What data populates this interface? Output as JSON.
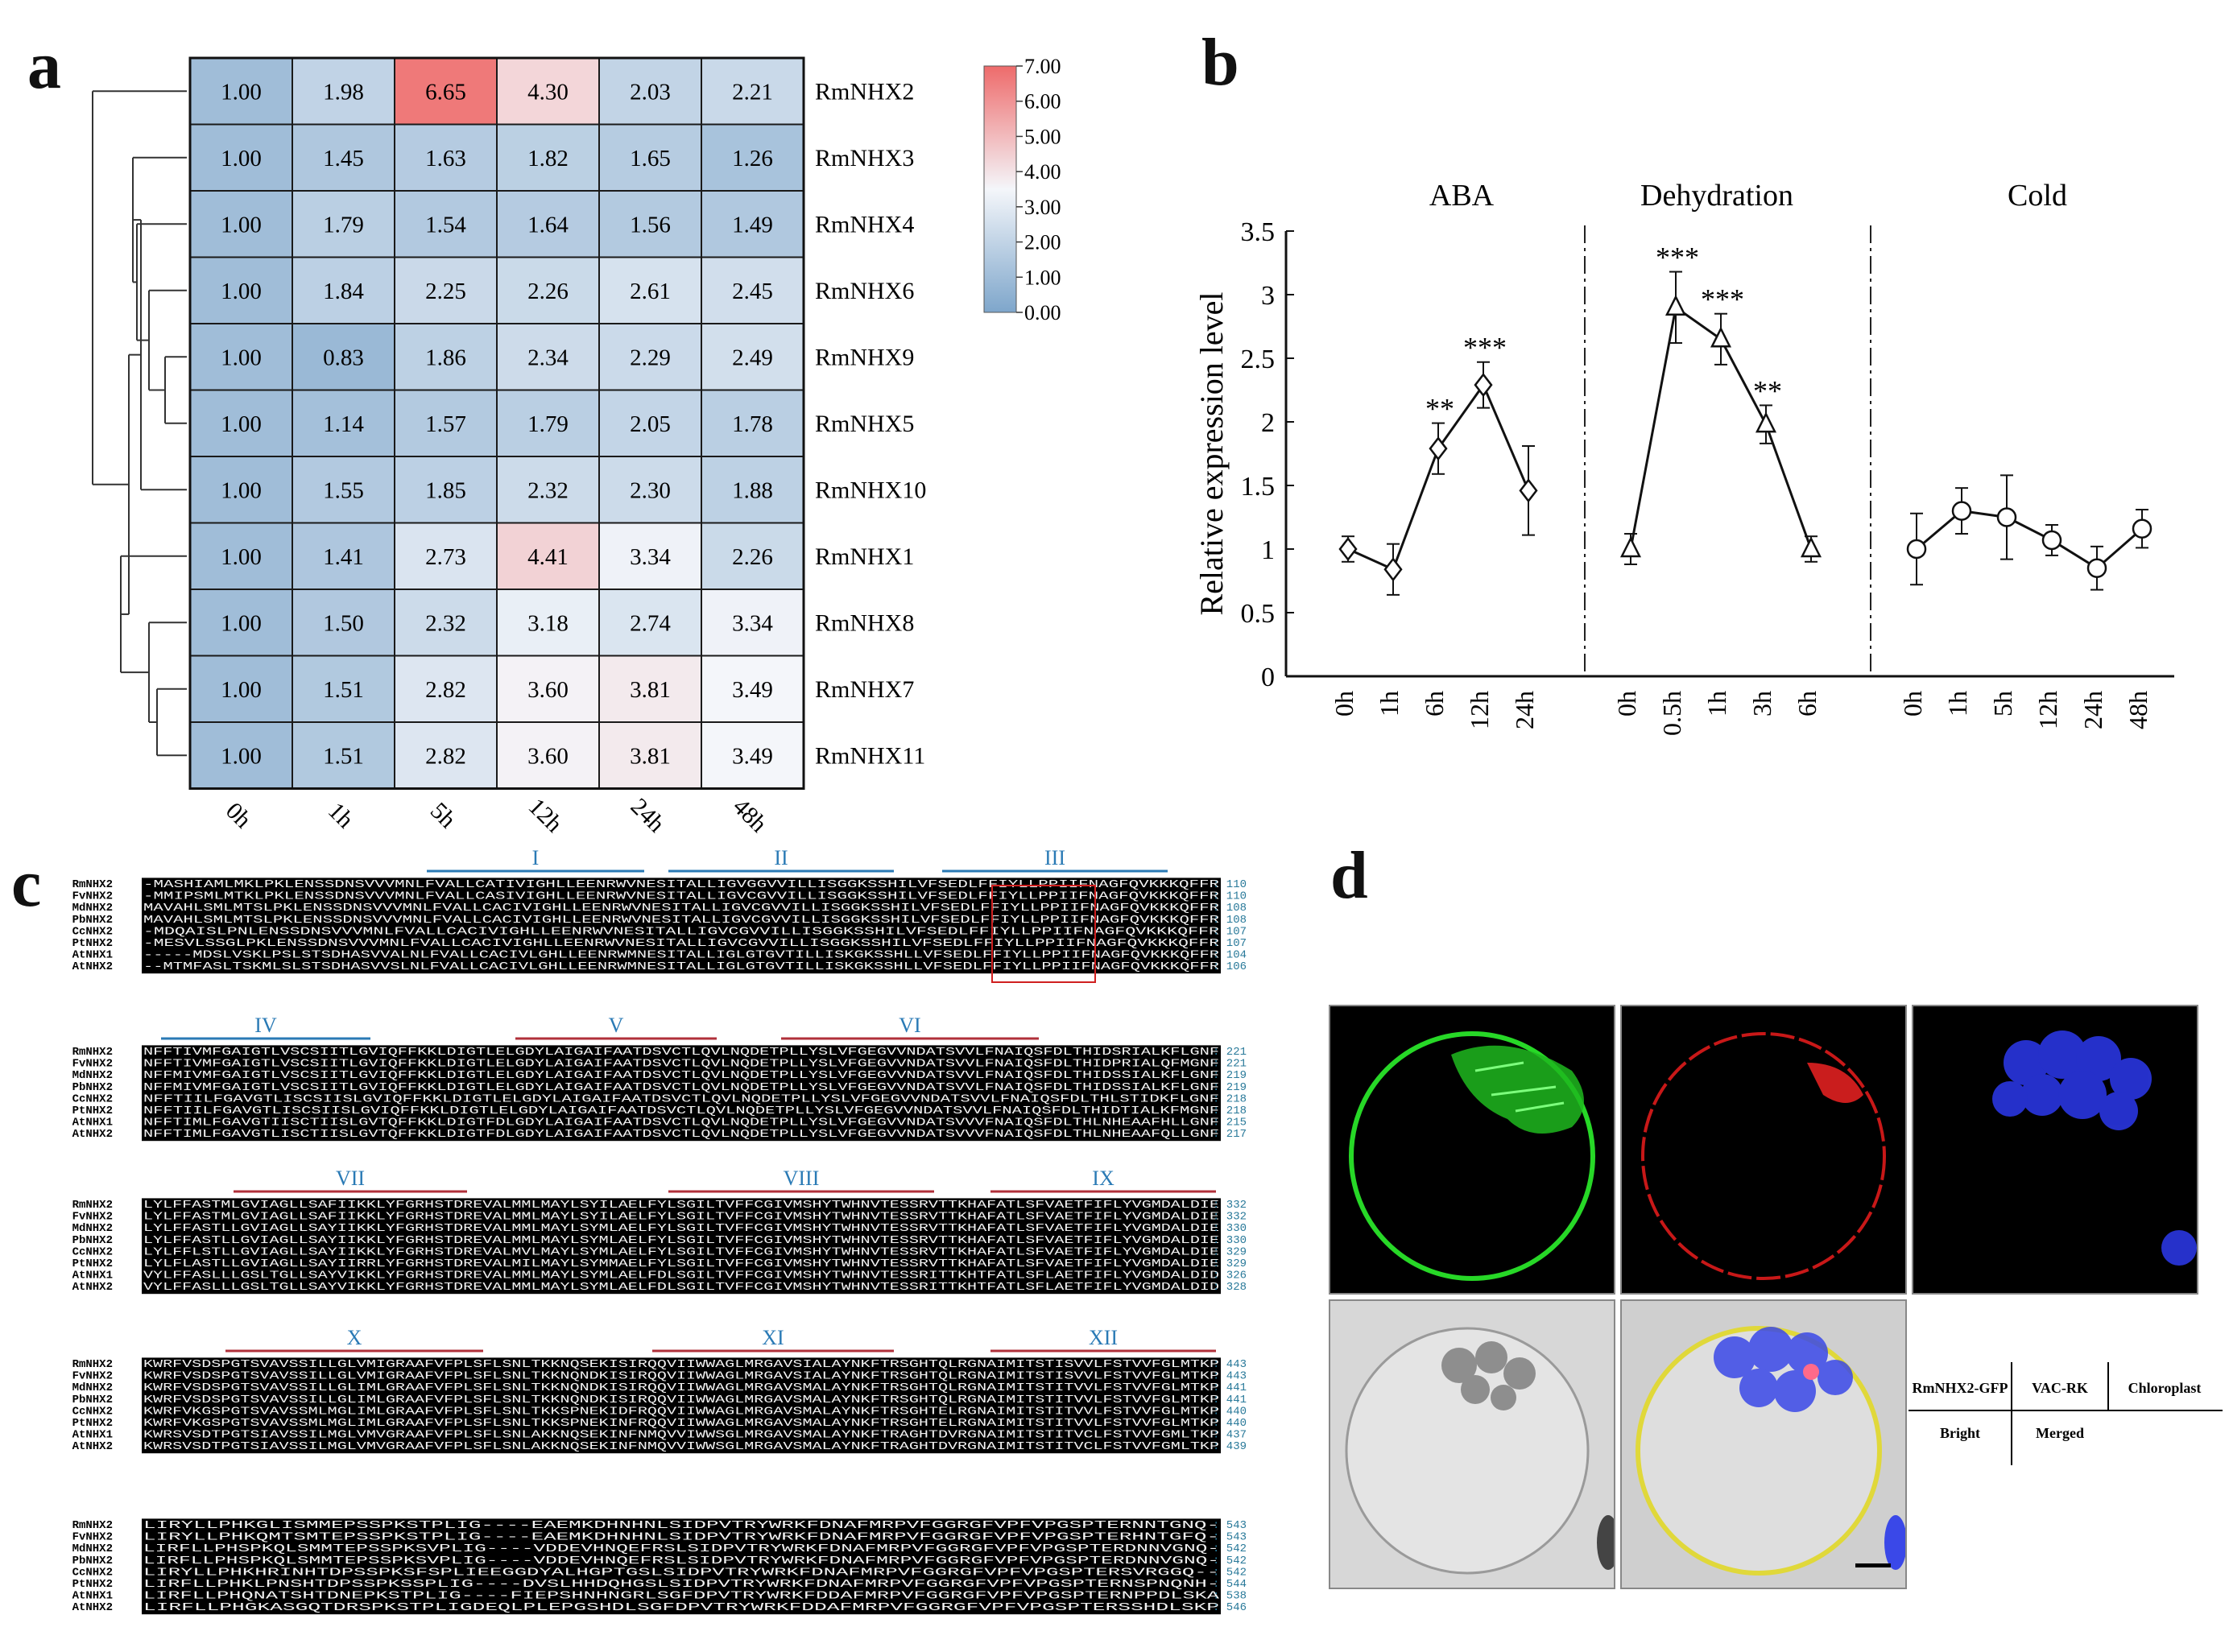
{
  "panels": {
    "a": "a",
    "b": "b",
    "c": "c",
    "d": "d"
  },
  "heatmap": {
    "columns": [
      "0h",
      "1h",
      "5h",
      "12h",
      "24h",
      "48h"
    ],
    "rows": [
      {
        "gene": "RmNHX2",
        "values": [
          1.0,
          1.98,
          6.65,
          4.3,
          2.03,
          2.21
        ]
      },
      {
        "gene": "RmNHX3",
        "values": [
          1.0,
          1.45,
          1.63,
          1.82,
          1.65,
          1.26
        ]
      },
      {
        "gene": "RmNHX4",
        "values": [
          1.0,
          1.79,
          1.54,
          1.64,
          1.56,
          1.49
        ]
      },
      {
        "gene": "RmNHX6",
        "values": [
          1.0,
          1.84,
          2.25,
          2.26,
          2.61,
          2.45
        ]
      },
      {
        "gene": "RmNHX9",
        "values": [
          1.0,
          0.83,
          1.86,
          2.34,
          2.29,
          2.49
        ]
      },
      {
        "gene": "RmNHX5",
        "values": [
          1.0,
          1.14,
          1.57,
          1.79,
          2.05,
          1.78
        ]
      },
      {
        "gene": "RmNHX10",
        "values": [
          1.0,
          1.55,
          1.85,
          2.32,
          2.3,
          1.88
        ]
      },
      {
        "gene": "RmNHX1",
        "values": [
          1.0,
          1.41,
          2.73,
          4.41,
          3.34,
          2.26
        ]
      },
      {
        "gene": "RmNHX8",
        "values": [
          1.0,
          1.5,
          2.32,
          3.18,
          2.74,
          3.34
        ]
      },
      {
        "gene": "RmNHX7",
        "values": [
          1.0,
          1.51,
          2.82,
          3.6,
          3.81,
          3.49
        ]
      },
      {
        "gene": "RmNHX11",
        "values": [
          1.0,
          1.51,
          2.82,
          3.6,
          3.81,
          3.49
        ]
      }
    ],
    "scale_labels": [
      "7.00",
      "6.00",
      "5.00",
      "4.00",
      "3.00",
      "2.00",
      "1.00",
      "0.00"
    ],
    "scale_range": [
      0,
      7
    ],
    "colors": {
      "low": "#7ea6cb",
      "mid": "#f4f6fa",
      "high": "#ee6b6b"
    }
  },
  "chart_data": {
    "type": "line",
    "ylabel": "Relative expression level",
    "ylim": [
      0,
      3.5
    ],
    "yticks": [
      "0",
      "0.5",
      "1",
      "1.5",
      "2",
      "2.5",
      "3",
      "3.5"
    ],
    "groups": [
      {
        "name": "ABA",
        "marker": "diamond",
        "x": [
          "0h",
          "1h",
          "6h",
          "12h",
          "24h"
        ],
        "y": [
          1.0,
          0.84,
          1.79,
          2.29,
          1.46
        ],
        "err": [
          0.1,
          0.2,
          0.2,
          0.18,
          0.35
        ],
        "sig": [
          "",
          "",
          "**",
          "***",
          ""
        ]
      },
      {
        "name": "Dehydration",
        "marker": "triangle",
        "x": [
          "0h",
          "0.5h",
          "1h",
          "3h",
          "6h"
        ],
        "y": [
          1.0,
          2.9,
          2.65,
          1.98,
          1.0
        ],
        "err": [
          0.12,
          0.28,
          0.2,
          0.15,
          0.1
        ],
        "sig": [
          "",
          "***",
          "***",
          "**",
          ""
        ]
      },
      {
        "name": "Cold",
        "marker": "circle",
        "x": [
          "0h",
          "1h",
          "5h",
          "12h",
          "24h",
          "48h"
        ],
        "y": [
          1.0,
          1.3,
          1.25,
          1.07,
          0.85,
          1.16
        ],
        "err": [
          0.28,
          0.18,
          0.33,
          0.12,
          0.17,
          0.15
        ],
        "sig": [
          "",
          "",
          "",
          "",
          "",
          ""
        ]
      }
    ]
  },
  "alignment": {
    "blocks": [
      {
        "domains": [
          "I",
          "II",
          "III"
        ],
        "rows": [
          {
            "name": "RmNHX2",
            "seq": "-MASHIAMLMKLPKLENSSDNSVVVMNLFVALLCATIVIGHLLEENRWVNESITALLIGVGGVVILLISGGKSSHILVFSEDLFFIYLLPPIIFNAGFQVKKKQFFR",
            "num": "110"
          },
          {
            "name": "FvNHX2",
            "seq": "-MMIPSMLMTKLPKLENSSDNSVVVMNLFVALLCASIVIGHLLEENRWVNESITALLIGVCGVVILLISGGKSSHILVFSEDLFFIYLLPPIIFNAGFQVKKKQFFR",
            "num": "110"
          },
          {
            "name": "MdNHX2",
            "seq": "MAVAHLSMLMTSLPKLENSSDNSVVVMNLFVALLCACIVIGHLLEENRWVNESITALLIGVCGVVILLISGGKSSHILVFSEDLFFIYLLPPIIFNAGFQVKKKQFFR",
            "num": "108"
          },
          {
            "name": "PbNHX2",
            "seq": "MAVAHLSMLMTSLPKLENSSDNSVVVMNLFVALLCACIVIGHLLEENRWVNESITALLIGVCGVVILLISGGKSSHILVFSEDLFFIYLLPPIIFNAGFQVKKKQFFR",
            "num": "108"
          },
          {
            "name": "CcNHX2",
            "seq": "-MDQAISLPNLENSSDNSVVVMNLFVALLCACIVIGHLLEENRWVNESITALLIGVCGVVILLISGGKSSHILVFSEDLFFIYLLPPIIFNAGFQVKKKQFFR",
            "num": "107"
          },
          {
            "name": "PtNHX2",
            "seq": "-MESVLSSGLPKLENSSDNSVVVMNLFVALLCACIVIGHLLEENRWVNESITALLIGVCGVVILLISGGKSSHILVFSEDLFFIYLLPPIIFNAGFQVKKKQFFR",
            "num": "107"
          },
          {
            "name": "AtNHX1",
            "seq": "-----MDSLVSKLPSLSTSDHASVVALNLFVALLCACIVLGHLLEENRWMNESITALLIGLGTGVTILLISKGKSSHLLVFSEDLFFIYLLPPIIFNAGFQVKKKQFFR",
            "num": "104"
          },
          {
            "name": "AtNHX2",
            "seq": "--MTMFASLTSKMLSLSTSDHASVVSLNLFVALLCACIVLGHLLEENRWMNESITALLIGLGTGVTILLISKGKSSHLLVFSEDLFFIYLLPPIIFNAGFQVKKKQFFR",
            "num": "106"
          }
        ]
      },
      {
        "domains": [
          "IV",
          "V",
          "VI"
        ],
        "rows": [
          {
            "name": "RmNHX2",
            "seq": "NFFTIVMFGAIGTLVSCSIITLGVIQFFKKLDIGTLELGDYLAIGAIFAATDSVCTLQVLNQDETPLLYSLVFGEGVVNDATSVVLFNAIQSFDLTHIDSRIALKFLGNF",
            "num": "221"
          },
          {
            "name": "FvNHX2",
            "seq": "NFFTIVMFGAIGTLVSCSIITLGVIQFFKKLDIGTLELGDYLAIGAIFAATDSVCTLQVLNQDETPLLYSLVFGEGVVNDATSVVLFNAIQSFDLTHIDPRIALQFMGNF",
            "num": "221"
          },
          {
            "name": "MdNHX2",
            "seq": "NFFMIVMFGAIGTLVSCSIITLGVIQFFKKLDIGTLELGDYLAIGAIFAATDSVCTLQVLNQDETPLLYSLVFGEGVVNDATSVVLFNAIQSFDLTHIDSSIALKFLGNF",
            "num": "219"
          },
          {
            "name": "PbNHX2",
            "seq": "NFFMIVMFGAIGTLVSCSIITLGVIQFFKKLDIGTLELGDYLAIGAIFAATDSVCTLQVLNQDETPLLYSLVFGEGVVNDATSVVLFNAIQSFDLTHIDSSIALKFLGNF",
            "num": "219"
          },
          {
            "name": "CcNHX2",
            "seq": "NFFTIILFGAVGTLISCSIISLGVIQFFKKLDIGTLELGDYLAIGAIFAATDSVCTLQVLNQDETPLLYSLVFGEGVVNDATSVVLFNAIQSFDLTHLSTIDKFLGNF",
            "num": "218"
          },
          {
            "name": "PtNHX2",
            "seq": "NFFTIILFGAVGTLISCSIISLGVIQFFKKLDIGTLELGDYLAIGAIFAATDSVCTLQVLNQDETPLLYSLVFGEGVVNDATSVVLFNAIQSFDLTHIDTIALKFMGNF",
            "num": "218"
          },
          {
            "name": "AtNHX1",
            "seq": "NFFTIMLFGAVGTIISCTIISLGVTQFFKKLDIGTFDLGDYLAIGAIFAATDSVCTLQVLNQDETPLLYSLVFGEGVVNDATSVVVFNAIQSFDLTHLNHEAAFHLLGNF",
            "num": "215"
          },
          {
            "name": "AtNHX2",
            "seq": "NFFTIMLFGAVGTLISCTIISLGVTQFFKKLDIGTFDLGDYLAIGAIFAATDSVCTLQVLNQDETPLLYSLVFGEGVVNDATSVVVFNAIQSFDLTHLNHEAAFQLLGNF",
            "num": "217"
          }
        ]
      },
      {
        "domains": [
          "VII",
          "VIII",
          "IX"
        ],
        "rows": [
          {
            "name": "RmNHX2",
            "seq": "LYLFFASTMLGVIAGLLSAFIIKKLYFGRHSTDREVALMMLMAYLSYILAELFYLSGILTVFFCGIVMSHYTWHNVTESSRVTTKHAFATLSFVAETFIFLYVGMDALDIE",
            "num": "332"
          },
          {
            "name": "FvNHX2",
            "seq": "LYLFFASTMLGVIAGLLSAFIIKKLYFGRHSTDREVALMMLMAYLSYILAELFYLSGILTVFFCGIVMSHYTWHNVTESSRVTTKHAFATLSFVAETFIFLYVGMDALDIE",
            "num": "332"
          },
          {
            "name": "MdNHX2",
            "seq": "LYLFFASTLLGVIAGLLSAYIIKKLYFGRHSTDREVALMMLMAYLSYMLAELFYLSGILTVFFCGIVMSHYTWHNVTESSRVTTKHAFATLSFVAETFIFLYVGMDALDIE",
            "num": "330"
          },
          {
            "name": "PbNHX2",
            "seq": "LYLFFASTLLGVIAGLLSAYIIKKLYFGRHSTDREVALMMLMAYLSYMLAELFYLSGILTVFFCGIVMSHYTWHNVTESSRVTTKHAFATLSFVAETFIFLYVGMDALDIE",
            "num": "330"
          },
          {
            "name": "CcNHX2",
            "seq": "LYLFFLSTLLGVIAGLLSAYIIKKLYFGRHSTDREVALMVLMAYLSYMLAELFYLSGILTVFFCGIVMSHYTWHNVTESSRVTTKHAFATLSFVAETFIFLYVGMDALDIE",
            "num": "329"
          },
          {
            "name": "PtNHX2",
            "seq": "LYLFLASTLLGVIAGLLSAYIIRRLYFGRHSTDREVALMILMAYLSYMMAELFYLSGILTVFFCGIVMSHYTWHNVTESSRVTTKHAFATLSFVAETFIFLYVGMDALDIE",
            "num": "329"
          },
          {
            "name": "AtNHX1",
            "seq": "VYLFFASLLLGSLTGLLSAYVIKKLYFGRHSTDREVALMMLMAYLSYMLAELFDLSGILTVFFCGIVMSHYTWHNVTESSRITTKHTFATLSFLAETFIFLYVGMDALDID",
            "num": "326"
          },
          {
            "name": "AtNHX2",
            "seq": "VYLFFASLLLGSLTGLLSAYVIKKLYFGRHSTDREVALMMLMAYLSYMLAELFDLSGILTVFFCGIVMSHYTWHNVTESSRITTKHTFATLSFLAETFIFLYVGMDALDID",
            "num": "328"
          }
        ]
      },
      {
        "domains": [
          "X",
          "XI",
          "XII"
        ],
        "rows": [
          {
            "name": "RmNHX2",
            "seq": "KWRFVSDSPGTSVAVSSILLGLVMIGRAAFVFPLSFLSNLTKKNQSEKISIRQQVIIWWAGLMRGAVSIALAYNKFTRSGHTQLRGNAIMITSTISVVLFSTVVFGLMTKP",
            "num": "443"
          },
          {
            "name": "FvNHX2",
            "seq": "KWRFVSDSPGTSVAVSSILLGLVMIGRAAFVFPLSFLSNLTKKNQNDKISIRQQVIIWWAGLMRGAVSIALAYNKFTRSGHTQLRGNAIMITSTISVVLFSTVVFGLMTKP",
            "num": "443"
          },
          {
            "name": "MdNHX2",
            "seq": "KWRFVSDSPGTSVAVSSILLGLIMLGRAAFVFPLSFLSNLTKKNQNDKISIRQQVIIWWAGLMRGAVSMALAYNKFTRSGHTQLRGNAIMITSTITVVLFSTVVFGLMTKP",
            "num": "441"
          },
          {
            "name": "PbNHX2",
            "seq": "KWRFVSDSPGTSVAVSSILLGLIMLGRAAFVFPLSFLSNLTKKNQNDKISIRQQVIIWWAGLMRGAVSMALAYNKFTRSGHTQLRGNAIMITSTITVVLFSTVVFGLMTKP",
            "num": "441"
          },
          {
            "name": "CcNHX2",
            "seq": "KWRFVKGSPGTSVAVSSMLMGLIMLGRAAFVFPLSFLSNLTKKSPNEKIDFRQQVIIWWAGLMRGAVSMALAYNKFTRSGHTELRGNAIMITSTITVVLFSTVVFGLMTKP",
            "num": "440"
          },
          {
            "name": "PtNHX2",
            "seq": "KWRFVKGSPGTSVAVSSMLMGLIMLGRAAFVFPLSFLSNLTKKSPNEKINFRQQVIIWWAGLMRGAVSMALAYNKFTRSGHTELRGNAIMITSTITVVLFSTVVFGLMTKP",
            "num": "440"
          },
          {
            "name": "AtNHX1",
            "seq": "KWRSVSDTPGTSIAVSSILMGLVMVGRAAFVFPLSFLSNLAKKNQSEKINFNMQVVIWWSGLMRGAVSMALAYNKFTRAGHTDVRGNAIMITSTITVCLFSTVVFGMLTKP",
            "num": "437"
          },
          {
            "name": "AtNHX2",
            "seq": "KWRSVSDTPGTSIAVSSILMGLVMVGRAAFVFPLSFLSNLAKKNQSEKINFNMQVVIWWSGLMRGAVSMALAYNKFTRAGHTDVRGNAIMITSTITVCLFSTVVFGMLTKP",
            "num": "439"
          }
        ]
      },
      {
        "domains": [],
        "rows": [
          {
            "name": "RmNHX2",
            "seq": "LIRYLLPHKGLISMMEPSSPKSTPLIG----EAEMKDHNHNLSIDPVTRYWRKFDNAFMRPVFGGRGFVPFVPGSPTERNNTGNQ-",
            "num": "543"
          },
          {
            "name": "FvNHX2",
            "seq": "LIRYLLPHKQMTSMTEPSSPKSTPLIG----EAEMKDHNHNLSIDPVTRYWRKFDNAFMRPVFGGRGFVPFVPGSPTERHNTGFQ-",
            "num": "543"
          },
          {
            "name": "MdNHX2",
            "seq": "LIRFLLPHSPKQLSMMTEPSSPKSVPLIG----VDDEVHNQEFRSLSIDPVTRYWRKFDNAFMRPVFGGRGFVPFVPGSPTERDNNVGNQ-",
            "num": "542"
          },
          {
            "name": "PbNHX2",
            "seq": "LIRFLLPHSPKQLSMMTEPSSPKSVPLIG----VDDEVHNQEFRSLSIDPVTRYWRKFDNAFMRPVFGGRGFVPFVPGSPTERDNNVGNQ-",
            "num": "542"
          },
          {
            "name": "CcNHX2",
            "seq": "LIRYLLPHKHRINHTDPSSPKSFSPLIEEGGDYALHGPTGSLSIDPVTRYWRKFDNAFMRPVFGGRGFVPFVPGSPTERSVRGGQ--",
            "num": "542"
          },
          {
            "name": "PtNHX2",
            "seq": "LIRFLLPHKLPNSHTDPSSPKSSPLIG----DVSLHHDQHGSLSIDPVTRYWRKFDNAFMRPVFGGRGFVPFVPGSPTERNSPNQNH-",
            "num": "544"
          },
          {
            "name": "AtNHX1",
            "seq": "LIRFLLPHQNATSHTDNEPKSTPLIG----FIEPSHNHNGRLSGFDPVTRYWRKFDDAFMRPVFGGRGFVPFVPGSPTERNPPDLSKA",
            "num": "538"
          },
          {
            "name": "AtNHX2",
            "seq": "LIRFLLPHGKASGQTDRSPKSTPLIGDEQLPLEPGSHDLSGFDPVTRYWRKFDDAFMRPVFGGRGFVPFVPGSPTERSSHDLSKP",
            "num": "546"
          }
        ]
      }
    ]
  },
  "micro": {
    "legend_top": [
      "RmNHX2-GFP",
      "VAC-RK",
      "Chloroplast"
    ],
    "legend_bottom": [
      "Bright",
      "Merged"
    ],
    "channels": [
      {
        "id": "gfp",
        "color": "#2ee02e"
      },
      {
        "id": "vacrk",
        "color": "#ff2a2a"
      },
      {
        "id": "chloro",
        "color": "#2a3cff"
      },
      {
        "id": "bright",
        "color": "#c8c8c8"
      },
      {
        "id": "merged",
        "color": "#d8d03a"
      }
    ]
  }
}
